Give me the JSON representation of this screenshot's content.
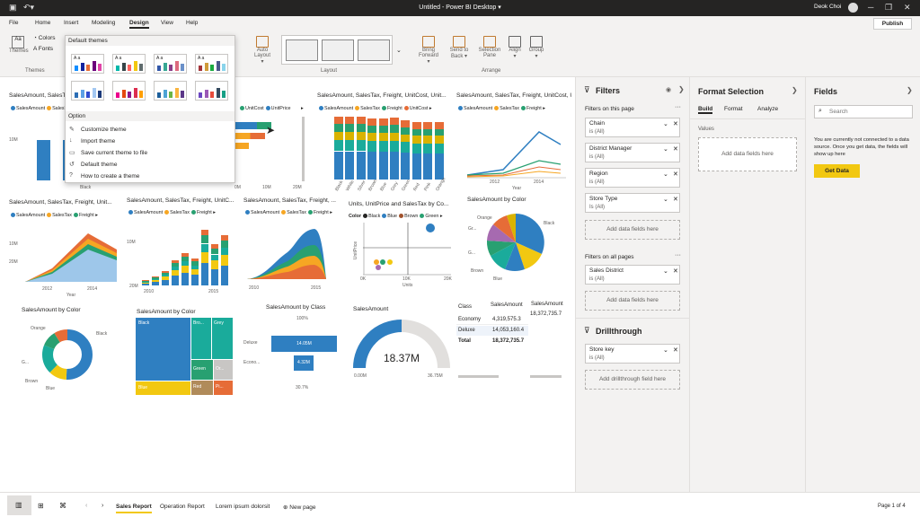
{
  "window": {
    "title": "Untitled - Power BI Desktop ▾",
    "user": "Deok Choi"
  },
  "menu": {
    "tabs": [
      "File",
      "Home",
      "Insert",
      "Modeling",
      "Design",
      "View",
      "Help"
    ],
    "active": "Design",
    "publish": "Publish"
  },
  "ribbon": {
    "themes_label": "Themes",
    "colors": "Colors",
    "fonts": "Fonts",
    "group_themes": "Themes",
    "auto_layout": "Auto Layout ▾",
    "group_layout": "Layout",
    "bring_forward": "Bring Forward ▾",
    "send_to_back": "Send to Back ▾",
    "selection_pane": "Selection Pane",
    "align": "Align ▾",
    "group_btn": "Group ▾",
    "group_arrange": "Arrange"
  },
  "dropdown": {
    "section_default": "Default themes",
    "section_option": "Option",
    "items": [
      "Customize theme",
      "Import theme",
      "Save current theme to file",
      "Default theme",
      "How to create a theme"
    ]
  },
  "visuals": {
    "v1_title": "SalesAmount, SalesTax, Freight, UnitCost, UnitPrice, ...",
    "v1_legend": [
      "SalesAmount",
      "SalesTax"
    ],
    "v1_ax": [
      "10M",
      "Black"
    ],
    "v2_legend": [
      "UnitCost",
      "UnitPrice"
    ],
    "v2_ax": [
      "0M",
      "10M",
      "20M"
    ],
    "v3_title": "SalesAmount, SalesTax, Freight, UnitCost, Unit...",
    "v3_legend": [
      "SalesAmount",
      "SalesTax",
      "Freight",
      "UnitCost"
    ],
    "v3_cats": [
      "Black",
      "White",
      "Silver",
      "Brown",
      "Blue",
      "Grey",
      "Green",
      "Red",
      "Pink",
      "Orange"
    ],
    "v4_title": "SalesAmount, SalesTax, Freight, UnitCost, Unit...",
    "v4_legend": [
      "SalesAmount",
      "SalesTax",
      "Freight"
    ],
    "v4_ax": [
      "2012",
      "2014",
      "Year"
    ],
    "v5_title": "SalesAmount, SalesTax, Freight, Unit...",
    "v5_legend": [
      "SalesAmount",
      "SalesTax",
      "Freight"
    ],
    "v5_ax": [
      "10M",
      "20M",
      "2012",
      "2014",
      "Year"
    ],
    "v6_title": "SalesAmount, SalesTax, Freight, UnitC...",
    "v6_legend": [
      "SalesAmount",
      "SalesTax",
      "Freight"
    ],
    "v6_ax": [
      "10M",
      "20M",
      "2010",
      "2015"
    ],
    "v7_title": "SalesAmount, SalesTax, Freight, ...",
    "v7_legend": [
      "SalesAmount",
      "SalesTax",
      "Freight"
    ],
    "v7_ax": [
      "2010",
      "2015"
    ],
    "v8_title": "Units, UnitPrice and SalesTax by Co...",
    "v8_legend_label": "Color",
    "v8_legend": [
      "Black",
      "Blue",
      "Brown",
      "Green"
    ],
    "v8_ax": [
      "0K",
      "10K",
      "20K",
      "Units",
      "UnitPrice"
    ],
    "v9_title": "SalesAmount by Color",
    "v9_labels": [
      "Orange",
      "Black",
      "Gr...",
      "G...",
      "Brown",
      "Blue"
    ],
    "v10_title": "SalesAmount by Color",
    "v10_labels": [
      "Orange",
      "Black",
      "G...",
      "Brown",
      "Blue"
    ],
    "v11_title": "SalesAmount by Color",
    "v11_labels": [
      "Black",
      "Bro...",
      "Grey",
      "Green",
      "Blue",
      "Red",
      "Pi...",
      "Or..."
    ],
    "v12_title": "SalesAmount by Class",
    "v12_labels": [
      "100%",
      "Deluxe",
      "14.05M",
      "Econo...",
      "4.32M",
      "30.7%"
    ],
    "v13_title": "SalesAmount",
    "v13_value": "18.37M",
    "v13_min": "0.00M",
    "v13_max": "36.75M",
    "v14_headers": [
      "Class",
      "SalesAmount",
      "SalesAmount"
    ],
    "v14_rows": [
      [
        "Economy",
        "4,319,575.3",
        "18,372,735.7"
      ],
      [
        "Deluxe",
        "14,053,160.4",
        ""
      ],
      [
        "Total",
        "18,372,735.7",
        ""
      ]
    ]
  },
  "filters": {
    "title": "Filters",
    "on_page": "Filters on this page",
    "cards": [
      {
        "name": "Chain",
        "val": "is (All)"
      },
      {
        "name": "District Manager",
        "val": "is (All)"
      },
      {
        "name": "Region",
        "val": "is (All)"
      },
      {
        "name": "Store Type",
        "val": "Is (All)"
      }
    ],
    "add": "Add data fields here",
    "all_pages": "Filters on all pages",
    "all_cards": [
      {
        "name": "Sales District",
        "val": "is (All)"
      }
    ],
    "add2": "Add data fields here",
    "drill": "Drillthrough",
    "drill_cards": [
      {
        "name": "Store key",
        "val": "is (All)"
      }
    ],
    "add_drill": "Add drillthrough field here"
  },
  "format": {
    "title": "Format Selection",
    "tabs": [
      "Build",
      "Format",
      "Analyze"
    ],
    "values": "Values",
    "add": "Add data fields here"
  },
  "fields": {
    "title": "Fields",
    "search_placeholder": "Search",
    "msg": "You are currently not connected to a data source. Once you get data, the fields will show up here",
    "get_data": "Get Data"
  },
  "pages": {
    "tabs": [
      "Sales Report",
      "Operation Report",
      "Lorem ipsum dolorsit"
    ],
    "active": "Sales Report",
    "new_page": "New page",
    "page_info": "Page 1 of 4"
  },
  "colors": {
    "blue": "#2f7fc1",
    "orange": "#f6a623",
    "green": "#28a071",
    "yellow": "#f2c811",
    "red": "#e66c37",
    "teal": "#1aab9b",
    "tan": "#d9b300",
    "gray": "#8a8886"
  }
}
